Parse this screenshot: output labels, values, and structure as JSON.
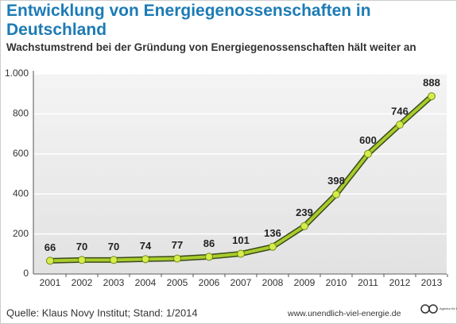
{
  "chart_data": {
    "type": "line",
    "title": "Entwicklung von Energiegenossenschaften in Deutschland",
    "subtitle": "Wachstumstrend bei der Gründung von Energiegenossenschaften hält weiter an",
    "categories": [
      "2001",
      "2002",
      "2003",
      "2004",
      "2005",
      "2006",
      "2007",
      "2008",
      "2009",
      "2010",
      "2011",
      "2012",
      "2013"
    ],
    "values": [
      66,
      70,
      70,
      74,
      77,
      86,
      101,
      136,
      239,
      398,
      600,
      746,
      888
    ],
    "color": "#a8cc2a",
    "ylim": [
      0,
      1000
    ],
    "yticks": [
      0,
      200,
      400,
      600,
      800,
      {
        "value": 1000,
        "label": "1.000"
      }
    ],
    "grid": true,
    "source": "Quelle: Klaus Novy Institut; Stand: 1/2014",
    "website": "www.unendlich-viel-energie.de",
    "logo_text": "Agentur für Erneuerbare Energien"
  }
}
